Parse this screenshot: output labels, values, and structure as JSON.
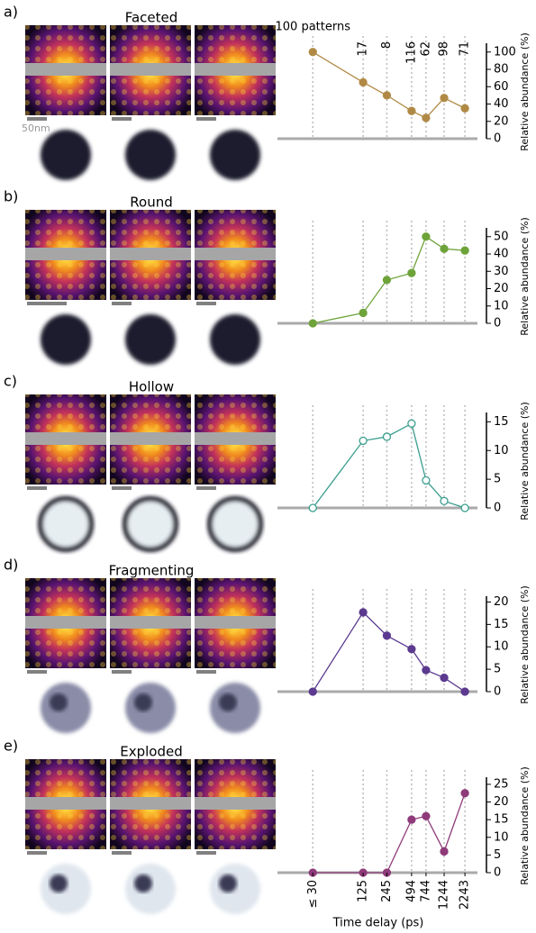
{
  "figure": {
    "scale_label": "50nm"
  },
  "chart_data": [
    {
      "type": "line",
      "panel": "a)",
      "title": "Faceted",
      "color": "#b08a45",
      "marker": "filled",
      "x": [
        30,
        125,
        245,
        494,
        744,
        1244,
        2243
      ],
      "values": [
        100,
        65,
        50,
        32,
        24,
        47,
        35
      ],
      "xlim": [
        11,
        3200
      ],
      "xscale": "log",
      "ylim": [
        0,
        106
      ],
      "yticks": [
        0,
        20,
        40,
        60,
        80,
        100
      ],
      "ylabel": "Relative abundance (%)",
      "annotations": [
        "100 patterns",
        "17",
        "8",
        "116",
        "62",
        "98",
        "71"
      ]
    },
    {
      "type": "line",
      "panel": "b)",
      "title": "Round",
      "color": "#6ea33a",
      "marker": "filled",
      "x": [
        30,
        125,
        245,
        494,
        744,
        1244,
        2243
      ],
      "values": [
        0,
        6,
        25,
        29,
        50,
        43,
        42
      ],
      "xlim": [
        11,
        3200
      ],
      "xscale": "log",
      "ylim": [
        0,
        53
      ],
      "yticks": [
        0,
        10,
        20,
        30,
        40,
        50
      ],
      "ylabel": "Relative abundance (%)"
    },
    {
      "type": "line",
      "panel": "c)",
      "title": "Hollow",
      "color": "#3a9e8e",
      "marker": "hollow",
      "x": [
        30,
        125,
        245,
        494,
        744,
        1244,
        2243
      ],
      "values": [
        0,
        11.7,
        12.4,
        14.7,
        4.8,
        1.2,
        0
      ],
      "xlim": [
        11,
        3200
      ],
      "xscale": "log",
      "ylim": [
        0,
        16
      ],
      "yticks": [
        0,
        5,
        10,
        15
      ],
      "ylabel": "Relative abundance (%)"
    },
    {
      "type": "line",
      "panel": "d)",
      "title": "Fragmenting",
      "color": "#5b3a8f",
      "marker": "filled",
      "x": [
        30,
        125,
        245,
        494,
        744,
        1244,
        2243
      ],
      "values": [
        0,
        17.7,
        12.5,
        9.5,
        4.8,
        3.1,
        0
      ],
      "xlim": [
        11,
        3200
      ],
      "xscale": "log",
      "ylim": [
        0,
        20.5
      ],
      "yticks": [
        0,
        5,
        10,
        15,
        20
      ],
      "ylabel": "Relative abundance (%)"
    },
    {
      "type": "line",
      "panel": "e)",
      "title": "Exploded",
      "color": "#8f3a7a",
      "marker": "filled",
      "x": [
        30,
        125,
        245,
        494,
        744,
        1244,
        2243
      ],
      "values": [
        0,
        0,
        0,
        15,
        16,
        6,
        22.5
      ],
      "xlim": [
        11,
        3200
      ],
      "xscale": "log",
      "ylim": [
        0,
        26
      ],
      "yticks": [
        0,
        5,
        10,
        15,
        20,
        25
      ],
      "ylabel": "Relative abundance (%)",
      "xlabel": "Time delay (ps)",
      "xticks": [
        {
          "value": 30,
          "label": "≤ 30"
        },
        125,
        245,
        494,
        744,
        1244,
        2243
      ]
    }
  ]
}
